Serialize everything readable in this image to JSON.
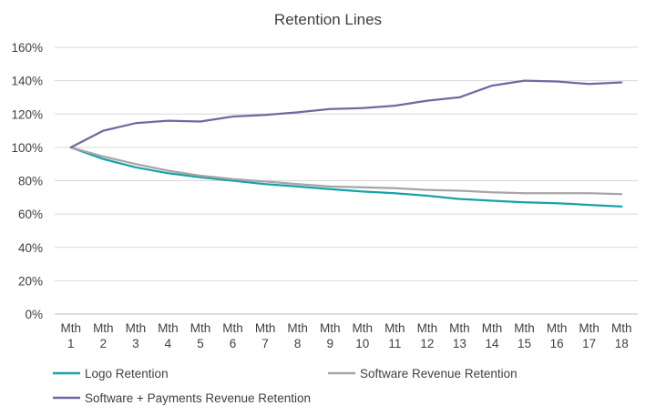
{
  "chart_data": {
    "type": "line",
    "title": "Retention Lines",
    "xlabel": "",
    "ylabel": "",
    "ylim": [
      0,
      160
    ],
    "yticks": [
      "0%",
      "20%",
      "40%",
      "60%",
      "80%",
      "100%",
      "120%",
      "140%",
      "160%"
    ],
    "ytick_values": [
      0,
      20,
      40,
      60,
      80,
      100,
      120,
      140,
      160
    ],
    "categories": [
      [
        "Mth",
        "1"
      ],
      [
        "Mth",
        "2"
      ],
      [
        "Mth",
        "3"
      ],
      [
        "Mth",
        "4"
      ],
      [
        "Mth",
        "5"
      ],
      [
        "Mth",
        "6"
      ],
      [
        "Mth",
        "7"
      ],
      [
        "Mth",
        "8"
      ],
      [
        "Mth",
        "9"
      ],
      [
        "Mth",
        "10"
      ],
      [
        "Mth",
        "11"
      ],
      [
        "Mth",
        "12"
      ],
      [
        "Mth",
        "13"
      ],
      [
        "Mth",
        "14"
      ],
      [
        "Mth",
        "15"
      ],
      [
        "Mth",
        "16"
      ],
      [
        "Mth",
        "17"
      ],
      [
        "Mth",
        "18"
      ]
    ],
    "grid": true,
    "legend_position": "bottom",
    "series": [
      {
        "name": "Logo Retention",
        "color": "#17a2a8",
        "values": [
          100,
          93,
          88,
          84.5,
          82,
          80,
          78,
          76.5,
          75,
          73.5,
          72.5,
          71,
          69,
          68,
          67,
          66.5,
          65.5,
          64.5
        ]
      },
      {
        "name": "Software Revenue Retention",
        "color": "#a6a6a6",
        "values": [
          100,
          94.5,
          90,
          86,
          83,
          81,
          79.5,
          78,
          76.5,
          76,
          75.5,
          74.5,
          74,
          73,
          72.5,
          72.5,
          72.5,
          72
        ]
      },
      {
        "name": "Software + Payments Revenue Retention",
        "color": "#7467a0",
        "values": [
          100,
          110,
          114.5,
          116,
          115.5,
          118.5,
          119.5,
          121,
          123,
          123.5,
          125,
          128,
          130,
          137,
          140,
          139.5,
          138,
          139
        ]
      }
    ]
  }
}
